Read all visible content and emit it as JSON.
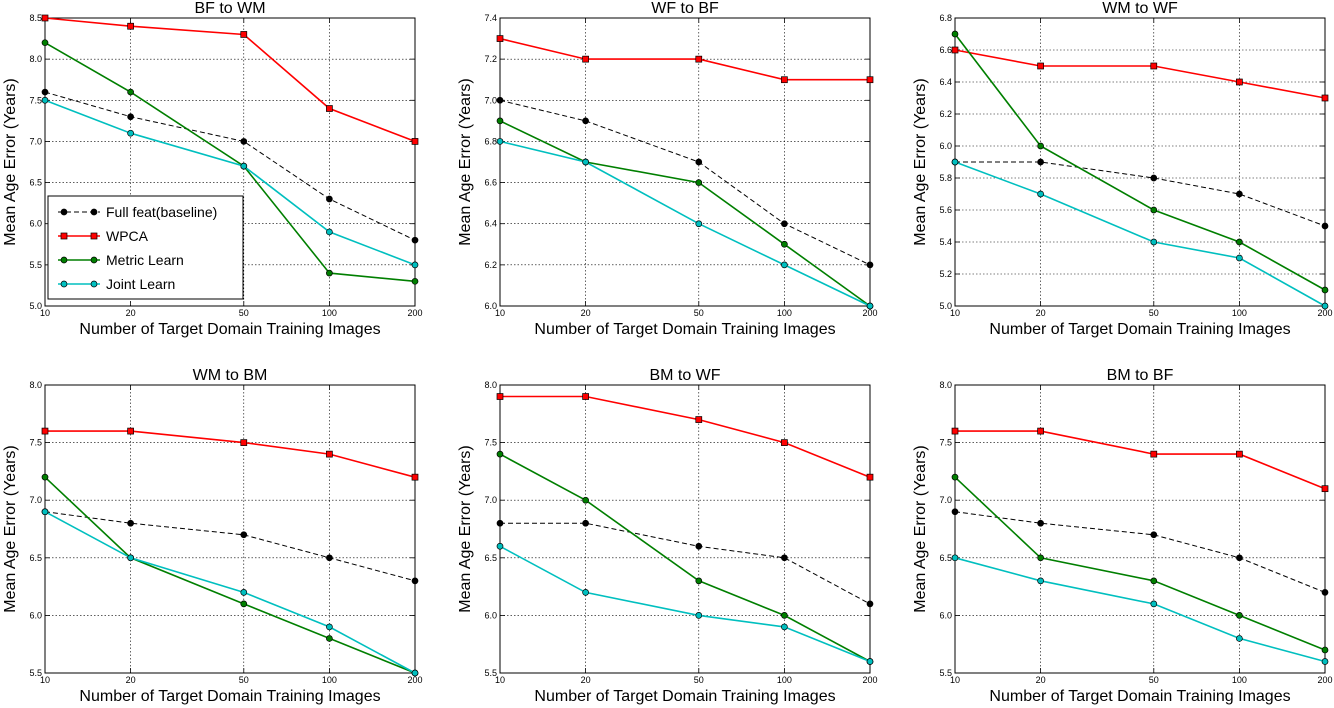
{
  "figure": {
    "legend": {
      "entries": [
        "Full feat(baseline)",
        "WPCA",
        "Metric Learn",
        "Joint Learn"
      ]
    },
    "series_styles": [
      {
        "color": "#000000",
        "marker": "circle",
        "dashed": true
      },
      {
        "color": "#ff0000",
        "marker": "square",
        "dashed": false
      },
      {
        "color": "#007f00",
        "marker": "circle",
        "dashed": false
      },
      {
        "color": "#00bfbf",
        "marker": "circle",
        "dashed": false
      }
    ]
  },
  "chart_data": [
    {
      "type": "line",
      "title": "BF to WM",
      "xlabel": "Number of Target Domain Training Images",
      "ylabel": "Mean Age Error (Years)",
      "x": [
        10,
        20,
        50,
        100,
        200
      ],
      "xscale": "log",
      "ylim": [
        5.0,
        8.5
      ],
      "yticks": [
        "5.0",
        "5.5",
        "6.0",
        "6.5",
        "7.0",
        "7.5",
        "8.0",
        "8.5"
      ],
      "grid": true,
      "legend_position": "lower-left",
      "series": [
        {
          "name": "Full feat(baseline)",
          "values": [
            7.6,
            7.3,
            7.0,
            6.3,
            5.8
          ]
        },
        {
          "name": "WPCA",
          "values": [
            8.5,
            8.4,
            8.3,
            7.4,
            7.0
          ]
        },
        {
          "name": "Metric Learn",
          "values": [
            8.2,
            7.6,
            6.7,
            5.4,
            5.3
          ]
        },
        {
          "name": "Joint Learn",
          "values": [
            7.5,
            7.1,
            6.7,
            5.9,
            5.5
          ]
        }
      ]
    },
    {
      "type": "line",
      "title": "WF to BF",
      "xlabel": "Number of Target Domain Training Images",
      "ylabel": "Mean Age Error (Years)",
      "x": [
        10,
        20,
        50,
        100,
        200
      ],
      "xscale": "log",
      "ylim": [
        6.0,
        7.4
      ],
      "yticks": [
        "6.0",
        "6.2",
        "6.4",
        "6.6",
        "6.8",
        "7.0",
        "7.2",
        "7.4"
      ],
      "grid": true,
      "series": [
        {
          "name": "Full feat(baseline)",
          "values": [
            7.0,
            6.9,
            6.7,
            6.4,
            6.2
          ]
        },
        {
          "name": "WPCA",
          "values": [
            7.3,
            7.2,
            7.2,
            7.1,
            7.1
          ]
        },
        {
          "name": "Metric Learn",
          "values": [
            6.9,
            6.7,
            6.6,
            6.3,
            6.0
          ]
        },
        {
          "name": "Joint Learn",
          "values": [
            6.8,
            6.7,
            6.4,
            6.2,
            6.0
          ]
        }
      ]
    },
    {
      "type": "line",
      "title": "WM to WF",
      "xlabel": "Number of Target Domain Training Images",
      "ylabel": "Mean Age Error (Years)",
      "x": [
        10,
        20,
        50,
        100,
        200
      ],
      "xscale": "log",
      "ylim": [
        5.0,
        6.8
      ],
      "yticks": [
        "5.0",
        "5.2",
        "5.4",
        "5.6",
        "5.8",
        "6.0",
        "6.2",
        "6.4",
        "6.6",
        "6.8"
      ],
      "grid": true,
      "series": [
        {
          "name": "Full feat(baseline)",
          "values": [
            5.9,
            5.9,
            5.8,
            5.7,
            5.5
          ]
        },
        {
          "name": "WPCA",
          "values": [
            6.6,
            6.5,
            6.5,
            6.4,
            6.3
          ]
        },
        {
          "name": "Metric Learn",
          "values": [
            6.7,
            6.0,
            5.6,
            5.4,
            5.1
          ]
        },
        {
          "name": "Joint Learn",
          "values": [
            5.9,
            5.7,
            5.4,
            5.3,
            5.0
          ]
        }
      ]
    },
    {
      "type": "line",
      "title": "WM to BM",
      "xlabel": "Number of Target Domain Training Images",
      "ylabel": "Mean Age Error (Years)",
      "x": [
        10,
        20,
        50,
        100,
        200
      ],
      "xscale": "log",
      "ylim": [
        5.5,
        8.0
      ],
      "yticks": [
        "5.5",
        "6.0",
        "6.5",
        "7.0",
        "7.5",
        "8.0"
      ],
      "grid": true,
      "series": [
        {
          "name": "Full feat(baseline)",
          "values": [
            6.9,
            6.8,
            6.7,
            6.5,
            6.3
          ]
        },
        {
          "name": "WPCA",
          "values": [
            7.6,
            7.6,
            7.5,
            7.4,
            7.2
          ]
        },
        {
          "name": "Metric Learn",
          "values": [
            7.2,
            6.5,
            6.1,
            5.8,
            5.5
          ]
        },
        {
          "name": "Joint Learn",
          "values": [
            6.9,
            6.5,
            6.2,
            5.9,
            5.5
          ]
        }
      ]
    },
    {
      "type": "line",
      "title": "BM to WF",
      "xlabel": "Number of Target Domain Training Images",
      "ylabel": "Mean Age Error (Years)",
      "x": [
        10,
        20,
        50,
        100,
        200
      ],
      "xscale": "log",
      "ylim": [
        5.5,
        8.0
      ],
      "yticks": [
        "5.5",
        "6.0",
        "6.5",
        "7.0",
        "7.5",
        "8.0"
      ],
      "grid": true,
      "series": [
        {
          "name": "Full feat(baseline)",
          "values": [
            6.8,
            6.8,
            6.6,
            6.5,
            6.1
          ]
        },
        {
          "name": "WPCA",
          "values": [
            7.9,
            7.9,
            7.7,
            7.5,
            7.2
          ]
        },
        {
          "name": "Metric Learn",
          "values": [
            7.4,
            7.0,
            6.3,
            6.0,
            5.6
          ]
        },
        {
          "name": "Joint Learn",
          "values": [
            6.6,
            6.2,
            6.0,
            5.9,
            5.6
          ]
        }
      ]
    },
    {
      "type": "line",
      "title": "BM to BF",
      "xlabel": "Number of Target Domain Training Images",
      "ylabel": "Mean Age Error (Years)",
      "x": [
        10,
        20,
        50,
        100,
        200
      ],
      "xscale": "log",
      "ylim": [
        5.5,
        8.0
      ],
      "yticks": [
        "5.5",
        "6.0",
        "6.5",
        "7.0",
        "7.5",
        "8.0"
      ],
      "grid": true,
      "series": [
        {
          "name": "Full feat(baseline)",
          "values": [
            6.9,
            6.8,
            6.7,
            6.5,
            6.2
          ]
        },
        {
          "name": "WPCA",
          "values": [
            7.6,
            7.6,
            7.4,
            7.4,
            7.1
          ]
        },
        {
          "name": "Metric Learn",
          "values": [
            7.2,
            6.5,
            6.3,
            6.0,
            5.7
          ]
        },
        {
          "name": "Joint Learn",
          "values": [
            6.5,
            6.3,
            6.1,
            5.8,
            5.6
          ]
        }
      ]
    }
  ]
}
